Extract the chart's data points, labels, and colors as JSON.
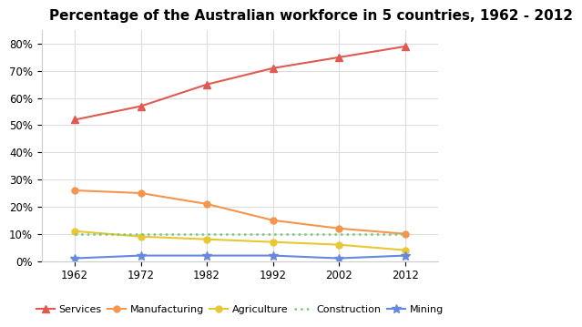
{
  "title": "Percentage of the Australian workforce in 5 countries, 1962 - 2012",
  "years": [
    1962,
    1972,
    1982,
    1992,
    2002,
    2012
  ],
  "series": [
    {
      "name": "Services",
      "values": [
        52,
        57,
        65,
        71,
        75,
        79
      ],
      "color": "#e05a52",
      "marker": "^",
      "markersize": 6,
      "linestyle": "-",
      "linewidth": 1.5
    },
    {
      "name": "Manufacturing",
      "values": [
        26,
        25,
        21,
        15,
        12,
        10
      ],
      "color": "#f5954e",
      "marker": "o",
      "markersize": 5,
      "linestyle": "-",
      "linewidth": 1.5
    },
    {
      "name": "Agriculture",
      "values": [
        11,
        9,
        8,
        7,
        6,
        4
      ],
      "color": "#e8c832",
      "marker": "o",
      "markersize": 5,
      "linestyle": "-",
      "linewidth": 1.5
    },
    {
      "name": "Construction",
      "values": [
        10,
        10,
        10,
        10,
        10,
        10
      ],
      "color": "#7dc87d",
      "marker": null,
      "markersize": 0,
      "linestyle": ":",
      "linewidth": 1.8
    },
    {
      "name": "Mining",
      "values": [
        1,
        2,
        2,
        2,
        1,
        2
      ],
      "color": "#6688dd",
      "marker": "*",
      "markersize": 7,
      "linestyle": "-",
      "linewidth": 1.5
    }
  ],
  "ylim": [
    0,
    85
  ],
  "yticks": [
    0,
    10,
    20,
    30,
    40,
    50,
    60,
    70,
    80
  ],
  "ytick_labels": [
    "0%",
    "10%",
    "20%",
    "30%",
    "40%",
    "50%",
    "60%",
    "70%",
    "80%"
  ],
  "xlim": [
    1957,
    2017
  ],
  "background_color": "#ffffff",
  "grid_color": "#dddddd",
  "title_fontsize": 11,
  "legend_fontsize": 8,
  "tick_fontsize": 8.5
}
